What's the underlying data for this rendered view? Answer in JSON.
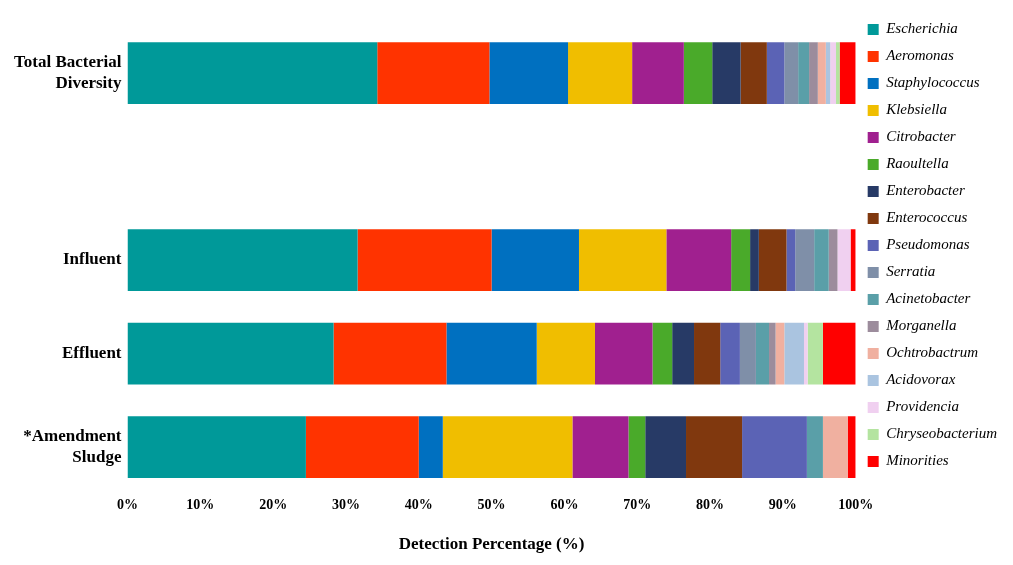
{
  "chart_data": {
    "type": "bar",
    "orientation": "horizontal",
    "stacked": true,
    "xlabel": "Detection Percentage (%)",
    "categories": [
      "Total Bacterial Diversity",
      null,
      "Influent",
      "Effluent",
      "*Amendment Sludge"
    ],
    "series": [
      {
        "name": "Escherichia",
        "color": "#009999",
        "values": [
          34.3,
          null,
          31.6,
          28.3,
          24.5
        ]
      },
      {
        "name": "Aeromonas",
        "color": "#ff3300",
        "values": [
          15.4,
          null,
          18.4,
          15.5,
          15.5
        ]
      },
      {
        "name": "Staphylococcus",
        "color": "#0070c0",
        "values": [
          10.8,
          null,
          12.0,
          12.4,
          3.3
        ]
      },
      {
        "name": "Klebsiella",
        "color": "#f0be00",
        "values": [
          8.8,
          null,
          12.0,
          8.0,
          17.8
        ]
      },
      {
        "name": "Citrobacter",
        "color": "#a0208f",
        "values": [
          7.1,
          null,
          8.9,
          7.9,
          7.7
        ]
      },
      {
        "name": "Raoultella",
        "color": "#4aaa2a",
        "values": [
          3.9,
          null,
          2.6,
          2.7,
          2.3
        ]
      },
      {
        "name": "Enterobacter",
        "color": "#273a66",
        "values": [
          3.9,
          null,
          1.2,
          3.0,
          5.6
        ]
      },
      {
        "name": "Enterococcus",
        "color": "#80380e",
        "values": [
          3.6,
          null,
          3.8,
          3.6,
          7.7
        ]
      },
      {
        "name": "Pseudomonas",
        "color": "#5b63b5",
        "values": [
          2.4,
          null,
          1.2,
          2.7,
          8.9
        ]
      },
      {
        "name": "Serratia",
        "color": "#7f8fa8",
        "values": [
          1.9,
          null,
          2.6,
          2.2,
          0
        ]
      },
      {
        "name": "Acinetobacter",
        "color": "#5a9fa8",
        "values": [
          1.5,
          null,
          2.0,
          1.8,
          2.2
        ]
      },
      {
        "name": "Morganella",
        "color": "#9c8c9c",
        "values": [
          1.2,
          null,
          1.2,
          0.9,
          0
        ]
      },
      {
        "name": "Ochtrobactrum",
        "color": "#f0b0a0",
        "values": [
          1.1,
          null,
          0,
          1.2,
          3.4
        ]
      },
      {
        "name": "Acidovorax",
        "color": "#aac4e0",
        "values": [
          0.6,
          null,
          0,
          2.7,
          0
        ]
      },
      {
        "name": "Providencia",
        "color": "#f0d0f0",
        "values": [
          0.8,
          null,
          1.8,
          0.5,
          0
        ]
      },
      {
        "name": "Chryseobacterium",
        "color": "#b4e4a0",
        "values": [
          0.5,
          null,
          0,
          2.1,
          0
        ]
      },
      {
        "name": "Minorities",
        "color": "#ff0000",
        "values": [
          2.2,
          null,
          0.7,
          4.5,
          1.1
        ]
      }
    ],
    "xlim": [
      0,
      100
    ],
    "xticks": [
      {
        "value": 0,
        "label": "0%"
      },
      {
        "value": 10,
        "label": "10%"
      },
      {
        "value": 20,
        "label": "20%"
      },
      {
        "value": 30,
        "label": "30%"
      },
      {
        "value": 40,
        "label": "40%"
      },
      {
        "value": 50,
        "label": "50%"
      },
      {
        "value": 60,
        "label": "60%"
      },
      {
        "value": 70,
        "label": "70%"
      },
      {
        "value": 80,
        "label": "80%"
      },
      {
        "value": 90,
        "label": "90%"
      },
      {
        "value": 100,
        "label": "100%"
      }
    ],
    "grid": false,
    "legend": "right"
  }
}
